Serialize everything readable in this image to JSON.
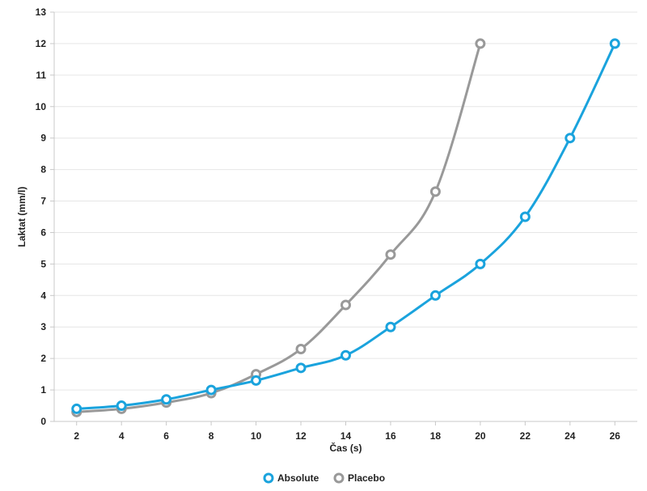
{
  "chart_data": {
    "type": "line",
    "title": "",
    "xlabel": "Čas (s)",
    "ylabel": "Laktat (mm/l)",
    "xlim": [
      1,
      27
    ],
    "ylim": [
      0,
      13
    ],
    "x_ticks": [
      2,
      4,
      6,
      8,
      10,
      12,
      14,
      16,
      18,
      20,
      22,
      24,
      26
    ],
    "y_ticks": [
      0,
      1,
      2,
      3,
      4,
      5,
      6,
      7,
      8,
      9,
      10,
      11,
      12,
      13
    ],
    "grid": true,
    "legend_position": "bottom-center",
    "series": [
      {
        "name": "Absolute",
        "color": "#1aa3dd",
        "x": [
          2,
          4,
          6,
          8,
          10,
          12,
          14,
          16,
          18,
          20,
          22,
          24,
          26
        ],
        "y": [
          0.4,
          0.5,
          0.7,
          1.0,
          1.3,
          1.7,
          2.1,
          3.0,
          4.0,
          5.0,
          6.5,
          9.0,
          12.0
        ]
      },
      {
        "name": "Placebo",
        "color": "#999999",
        "x": [
          2,
          4,
          6,
          8,
          10,
          12,
          14,
          16,
          18,
          20
        ],
        "y": [
          0.3,
          0.4,
          0.6,
          0.9,
          1.5,
          2.3,
          3.7,
          5.3,
          7.3,
          12.0
        ]
      }
    ]
  }
}
